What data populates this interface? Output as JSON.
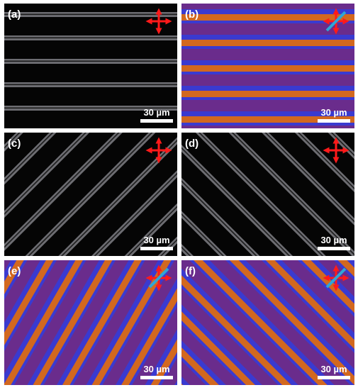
{
  "panels": [
    {
      "label": "(a)",
      "scale_bar": "30 µm"
    },
    {
      "label": "(b)",
      "scale_bar": "30 µm"
    },
    {
      "label": "(c)",
      "scale_bar": "30 µm"
    },
    {
      "label": "(d)",
      "scale_bar": "30 µm"
    },
    {
      "label": "(e)",
      "scale_bar": "30 µm"
    },
    {
      "label": "(f)",
      "scale_bar": "30 µm"
    }
  ]
}
